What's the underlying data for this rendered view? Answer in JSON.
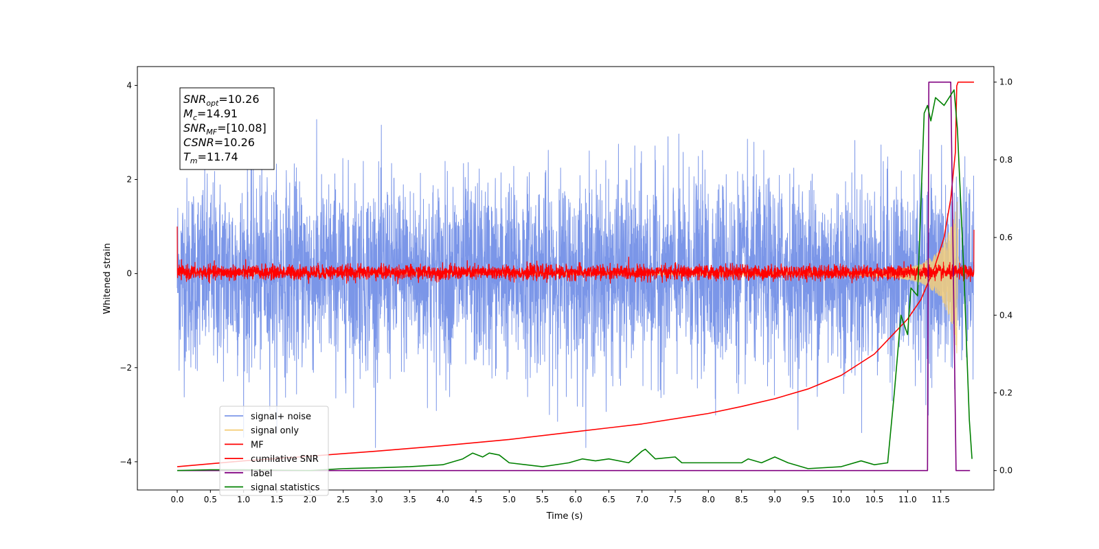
{
  "chart_data": {
    "type": "line",
    "title": "",
    "xlabel": "Time (s)",
    "ylabel": "Whitened strain",
    "xlim": [
      -0.6,
      12.3
    ],
    "ylim": [
      -4.6,
      4.4
    ],
    "y2lim": [
      -0.05,
      1.04
    ],
    "x_ticks": [
      0.0,
      0.5,
      1.0,
      1.5,
      2.0,
      2.5,
      3.0,
      3.5,
      4.0,
      4.5,
      5.0,
      5.5,
      6.0,
      6.5,
      7.0,
      7.5,
      8.0,
      8.5,
      9.0,
      9.5,
      10.0,
      10.5,
      11.0,
      11.5
    ],
    "x_tick_labels": [
      "0.0",
      "0.5",
      "1.0",
      "1.5",
      "2.0",
      "2.5",
      "3.0",
      "3.5",
      "4.0",
      "4.5",
      "5.0",
      "5.5",
      "6.0",
      "6.5",
      "7.0",
      "7.5",
      "8.0",
      "8.5",
      "9.0",
      "9.5",
      "10.0",
      "10.5",
      "11.0",
      "11.5"
    ],
    "y_ticks": [
      -4,
      -2,
      0,
      2,
      4
    ],
    "y_tick_labels": [
      "−4",
      "−2",
      "0",
      "2",
      "4"
    ],
    "y2_ticks": [
      0.0,
      0.2,
      0.4,
      0.6,
      0.8,
      1.0
    ],
    "y2_tick_labels": [
      "0.0",
      "0.2",
      "0.4",
      "0.6",
      "0.8",
      "1.0"
    ],
    "grid": false,
    "legend_position": "lower-left",
    "series": [
      {
        "name": "signal+ noise",
        "axis": "left",
        "color": "#7b96e8",
        "style": "dense-noise",
        "x_range": [
          0.0,
          12.0
        ],
        "typical_range": [
          -2.3,
          2.3
        ],
        "max": 4.02,
        "min": -3.7
      },
      {
        "name": "signal only",
        "axis": "left",
        "color": "#f5cf7a",
        "style": "chirp",
        "x_range": [
          0.0,
          12.0
        ],
        "envelope": [
          [
            0.0,
            0.01
          ],
          [
            10.0,
            0.03
          ],
          [
            10.8,
            0.08
          ],
          [
            11.2,
            0.2
          ],
          [
            11.5,
            0.5
          ],
          [
            11.7,
            1.2
          ],
          [
            11.74,
            1.7
          ],
          [
            11.8,
            0.0
          ],
          [
            12.0,
            0.0
          ]
        ]
      },
      {
        "name": "MF",
        "axis": "left",
        "color": "#ff0000",
        "style": "dense-noise",
        "x_range": [
          0.0,
          12.0
        ],
        "typical_range": [
          -0.15,
          0.2
        ],
        "start": 1.0,
        "end": 0.93
      },
      {
        "name": "cumilative SNR",
        "axis": "right",
        "color": "#ff0000",
        "style": "line",
        "points": [
          [
            0.0,
            0.01
          ],
          [
            1.0,
            0.025
          ],
          [
            2.0,
            0.037
          ],
          [
            3.0,
            0.05
          ],
          [
            4.0,
            0.064
          ],
          [
            5.0,
            0.08
          ],
          [
            6.0,
            0.1
          ],
          [
            7.0,
            0.12
          ],
          [
            8.0,
            0.147
          ],
          [
            8.5,
            0.165
          ],
          [
            9.0,
            0.185
          ],
          [
            9.5,
            0.21
          ],
          [
            10.0,
            0.245
          ],
          [
            10.5,
            0.3
          ],
          [
            11.0,
            0.39
          ],
          [
            11.2,
            0.44
          ],
          [
            11.4,
            0.52
          ],
          [
            11.55,
            0.6
          ],
          [
            11.65,
            0.7
          ],
          [
            11.72,
            0.82
          ],
          [
            11.74,
            0.99
          ],
          [
            11.76,
            1.0
          ],
          [
            12.0,
            1.0
          ]
        ]
      },
      {
        "name": "label",
        "axis": "right",
        "color": "#800080",
        "style": "line",
        "points": [
          [
            0.0,
            0.0
          ],
          [
            11.3,
            0.0
          ],
          [
            11.32,
            1.0
          ],
          [
            11.65,
            1.0
          ],
          [
            11.73,
            0.0
          ],
          [
            11.94,
            0.0
          ]
        ]
      },
      {
        "name": "signal statistics",
        "axis": "right",
        "color": "#008000",
        "style": "line",
        "points": [
          [
            0.0,
            0.0
          ],
          [
            0.5,
            0.002
          ],
          [
            1.0,
            0.002
          ],
          [
            1.5,
            0.001
          ],
          [
            2.0,
            0.0
          ],
          [
            2.5,
            0.005
          ],
          [
            3.0,
            0.007
          ],
          [
            3.5,
            0.01
          ],
          [
            4.0,
            0.015
          ],
          [
            4.3,
            0.03
          ],
          [
            4.45,
            0.045
          ],
          [
            4.6,
            0.035
          ],
          [
            4.7,
            0.045
          ],
          [
            4.85,
            0.04
          ],
          [
            5.0,
            0.02
          ],
          [
            5.5,
            0.01
          ],
          [
            5.9,
            0.02
          ],
          [
            6.1,
            0.03
          ],
          [
            6.3,
            0.025
          ],
          [
            6.5,
            0.03
          ],
          [
            6.8,
            0.02
          ],
          [
            7.0,
            0.05
          ],
          [
            7.05,
            0.055
          ],
          [
            7.2,
            0.03
          ],
          [
            7.5,
            0.035
          ],
          [
            7.6,
            0.02
          ],
          [
            8.0,
            0.02
          ],
          [
            8.5,
            0.02
          ],
          [
            8.6,
            0.03
          ],
          [
            8.8,
            0.02
          ],
          [
            9.0,
            0.035
          ],
          [
            9.2,
            0.02
          ],
          [
            9.5,
            0.005
          ],
          [
            10.0,
            0.01
          ],
          [
            10.3,
            0.025
          ],
          [
            10.5,
            0.015
          ],
          [
            10.7,
            0.02
          ],
          [
            10.8,
            0.2
          ],
          [
            10.9,
            0.4
          ],
          [
            11.0,
            0.35
          ],
          [
            11.05,
            0.47
          ],
          [
            11.15,
            0.45
          ],
          [
            11.25,
            0.92
          ],
          [
            11.3,
            0.94
          ],
          [
            11.35,
            0.9
          ],
          [
            11.42,
            0.96
          ],
          [
            11.55,
            0.94
          ],
          [
            11.7,
            0.98
          ],
          [
            11.75,
            0.88
          ],
          [
            11.85,
            0.5
          ],
          [
            11.93,
            0.13
          ],
          [
            11.97,
            0.03
          ]
        ]
      }
    ],
    "annotation_box": {
      "lines": [
        {
          "sym": "SNR",
          "sub": "opt",
          "val": "=10.26"
        },
        {
          "sym": "M",
          "sub": "c",
          "val": "=14.91"
        },
        {
          "sym": "SNR",
          "sub": "MF",
          "val": "=[10.08]"
        },
        {
          "sym": "CSNR",
          "sub": "",
          "val": "=10.26"
        },
        {
          "sym": "T",
          "sub": "m",
          "val": "=11.74"
        }
      ]
    }
  }
}
